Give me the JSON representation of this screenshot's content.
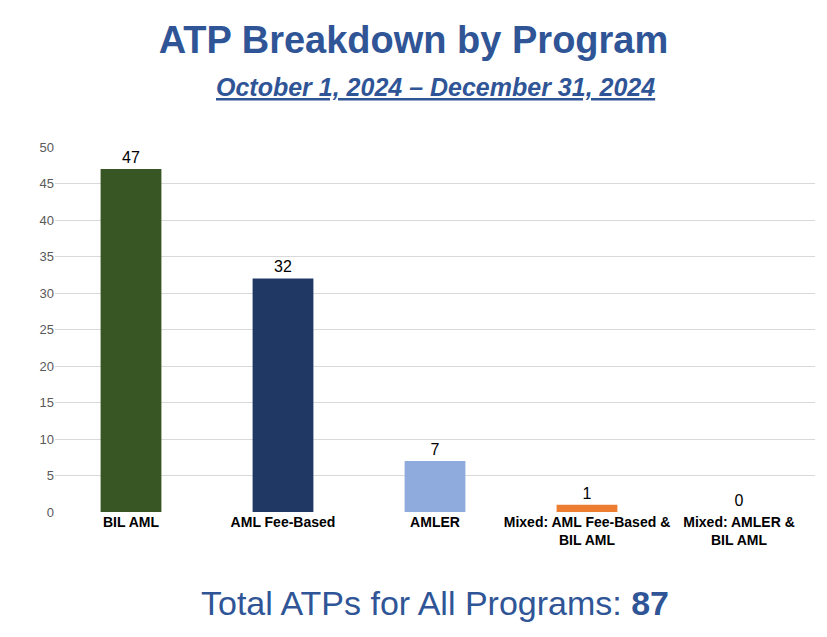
{
  "chart_data": {
    "type": "bar",
    "title": "ATP Breakdown by Program",
    "subtitle": "October 1, 2024 – December 31, 2024",
    "categories": [
      "BIL AML",
      "AML Fee-Based",
      "AMLER",
      "Mixed: AML Fee-Based & BIL AML",
      "Mixed: AMLER & BIL AML"
    ],
    "values": [
      47,
      32,
      7,
      1,
      0
    ],
    "colors": [
      "#375623",
      "#203864",
      "#8faadc",
      "#ed7d31",
      "#a5a5a5"
    ],
    "ylim": [
      0,
      50
    ],
    "yticks": [
      0,
      5,
      10,
      15,
      20,
      25,
      30,
      35,
      40,
      45,
      50
    ],
    "grid": true,
    "data_labels": true,
    "footer": "Total ATPs for All Programs:",
    "total": 87
  }
}
